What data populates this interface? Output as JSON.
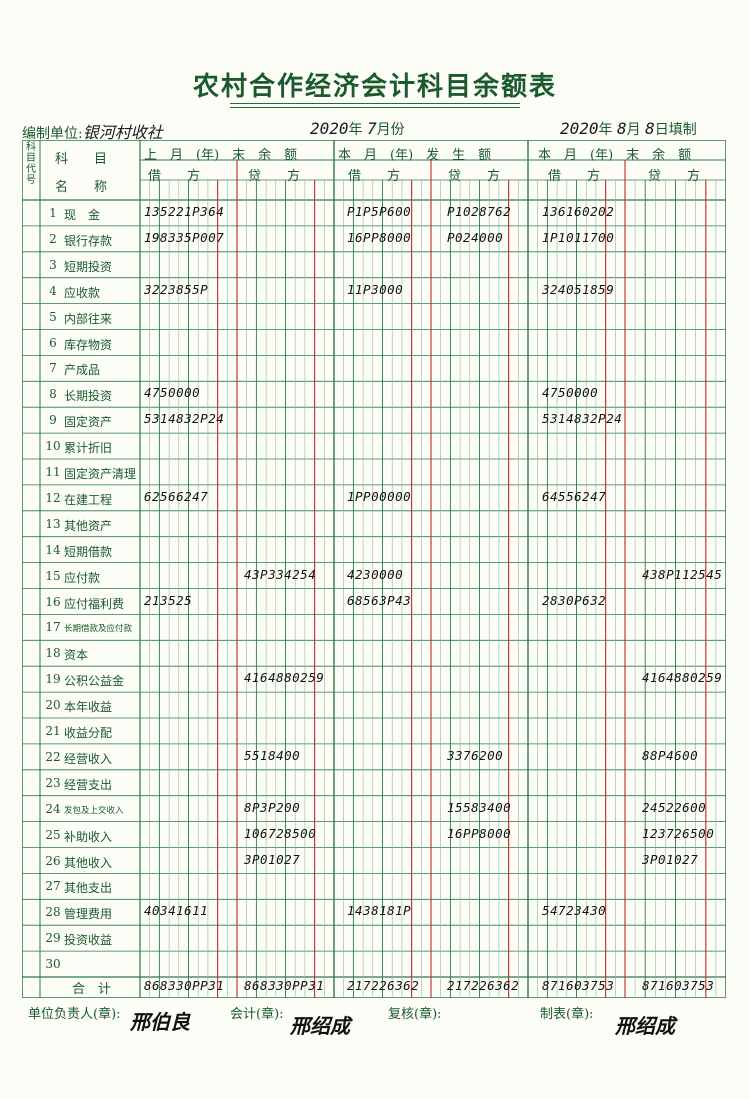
{
  "form": {
    "title": "农村合作经济会计科目余额表",
    "unit_label": "编制单位:",
    "unit_value": "银河村收社",
    "period_year": "2020",
    "period_year_suffix": "年",
    "period_month": "7",
    "period_month_suffix": "月份",
    "fill_year": "2020",
    "fill_year_suffix": "年",
    "fill_month": "8",
    "fill_month_suffix": "月",
    "fill_day": "8",
    "fill_day_suffix": "日填制"
  },
  "headers": {
    "code": "科目代号",
    "subject_top": "科　　目",
    "subject_bottom": "名　　称",
    "group_prev": "上　月　(年)　末　余　额",
    "group_curr": "本　月　(年)　发　生　额",
    "group_end": "本　月　(年)　末　余　额",
    "debit": "借　　方",
    "credit": "贷　　方",
    "total": "合　计"
  },
  "rows": [
    {
      "no": "1",
      "name": "现　金",
      "prev_debit": "135221P364",
      "prev_credit": "",
      "curr_debit": "P1P5P600",
      "curr_credit": "P1028762",
      "end_debit": "136160202",
      "end_credit": ""
    },
    {
      "no": "2",
      "name": "银行存款",
      "prev_debit": "198335P007",
      "prev_credit": "",
      "curr_debit": "16PP8000",
      "curr_credit": "P024000",
      "end_debit": "1P1011700",
      "end_credit": ""
    },
    {
      "no": "3",
      "name": "短期投资",
      "prev_debit": "",
      "prev_credit": "",
      "curr_debit": "",
      "curr_credit": "",
      "end_debit": "",
      "end_credit": ""
    },
    {
      "no": "4",
      "name": "应收款",
      "prev_debit": "3223855P",
      "prev_credit": "",
      "curr_debit": "11P3000",
      "curr_credit": "",
      "end_debit": "324051859",
      "end_credit": ""
    },
    {
      "no": "5",
      "name": "内部往来",
      "prev_debit": "",
      "prev_credit": "",
      "curr_debit": "",
      "curr_credit": "",
      "end_debit": "",
      "end_credit": ""
    },
    {
      "no": "6",
      "name": "库存物资",
      "prev_debit": "",
      "prev_credit": "",
      "curr_debit": "",
      "curr_credit": "",
      "end_debit": "",
      "end_credit": ""
    },
    {
      "no": "7",
      "name": "产成品",
      "prev_debit": "",
      "prev_credit": "",
      "curr_debit": "",
      "curr_credit": "",
      "end_debit": "",
      "end_credit": ""
    },
    {
      "no": "8",
      "name": "长期投资",
      "prev_debit": "4750000",
      "prev_credit": "",
      "curr_debit": "",
      "curr_credit": "",
      "end_debit": "4750000",
      "end_credit": ""
    },
    {
      "no": "9",
      "name": "固定资产",
      "prev_debit": "5314832P24",
      "prev_credit": "",
      "curr_debit": "",
      "curr_credit": "",
      "end_debit": "5314832P24",
      "end_credit": ""
    },
    {
      "no": "10",
      "name": "累计折旧",
      "prev_debit": "",
      "prev_credit": "",
      "curr_debit": "",
      "curr_credit": "",
      "end_debit": "",
      "end_credit": ""
    },
    {
      "no": "11",
      "name": "固定资产清理",
      "prev_debit": "",
      "prev_credit": "",
      "curr_debit": "",
      "curr_credit": "",
      "end_debit": "",
      "end_credit": ""
    },
    {
      "no": "12",
      "name": "在建工程",
      "prev_debit": "62566247",
      "prev_credit": "",
      "curr_debit": "1PP00000",
      "curr_credit": "",
      "end_debit": "64556247",
      "end_credit": ""
    },
    {
      "no": "13",
      "name": "其他资产",
      "prev_debit": "",
      "prev_credit": "",
      "curr_debit": "",
      "curr_credit": "",
      "end_debit": "",
      "end_credit": ""
    },
    {
      "no": "14",
      "name": "短期借款",
      "prev_debit": "",
      "prev_credit": "",
      "curr_debit": "",
      "curr_credit": "",
      "end_debit": "",
      "end_credit": ""
    },
    {
      "no": "15",
      "name": "应付款",
      "prev_debit": "",
      "prev_credit": "43P334254",
      "curr_debit": "4230000",
      "curr_credit": "",
      "end_debit": "",
      "end_credit": "438P112545"
    },
    {
      "no": "16",
      "name": "应付福利费",
      "prev_debit": "213525",
      "prev_credit": "",
      "curr_debit": "68563P43",
      "curr_credit": "",
      "end_debit": "2830P632",
      "end_credit": ""
    },
    {
      "no": "17",
      "name": "长期借款及应付款",
      "prev_debit": "",
      "prev_credit": "",
      "curr_debit": "",
      "curr_credit": "",
      "end_debit": "",
      "end_credit": ""
    },
    {
      "no": "18",
      "name": "资本",
      "prev_debit": "",
      "prev_credit": "",
      "curr_debit": "",
      "curr_credit": "",
      "end_debit": "",
      "end_credit": ""
    },
    {
      "no": "19",
      "name": "公积公益金",
      "prev_debit": "",
      "prev_credit": "4164880259",
      "curr_debit": "",
      "curr_credit": "",
      "end_debit": "",
      "end_credit": "4164880259"
    },
    {
      "no": "20",
      "name": "本年收益",
      "prev_debit": "",
      "prev_credit": "",
      "curr_debit": "",
      "curr_credit": "",
      "end_debit": "",
      "end_credit": ""
    },
    {
      "no": "21",
      "name": "收益分配",
      "prev_debit": "",
      "prev_credit": "",
      "curr_debit": "",
      "curr_credit": "",
      "end_debit": "",
      "end_credit": ""
    },
    {
      "no": "22",
      "name": "经营收入",
      "prev_debit": "",
      "prev_credit": "5518400",
      "curr_debit": "",
      "curr_credit": "3376200",
      "end_debit": "",
      "end_credit": "88P4600"
    },
    {
      "no": "23",
      "name": "经营支出",
      "prev_debit": "",
      "prev_credit": "",
      "curr_debit": "",
      "curr_credit": "",
      "end_debit": "",
      "end_credit": ""
    },
    {
      "no": "24",
      "name": "发包及上交收入",
      "prev_debit": "",
      "prev_credit": "8P3P200",
      "curr_debit": "",
      "curr_credit": "15583400",
      "end_debit": "",
      "end_credit": "24522600"
    },
    {
      "no": "25",
      "name": "补助收入",
      "prev_debit": "",
      "prev_credit": "106728500",
      "curr_debit": "",
      "curr_credit": "16PP8000",
      "end_debit": "",
      "end_credit": "123726500"
    },
    {
      "no": "26",
      "name": "其他收入",
      "prev_debit": "",
      "prev_credit": "3P01027",
      "curr_debit": "",
      "curr_credit": "",
      "end_debit": "",
      "end_credit": "3P01027"
    },
    {
      "no": "27",
      "name": "其他支出",
      "prev_debit": "",
      "prev_credit": "",
      "curr_debit": "",
      "curr_credit": "",
      "end_debit": "",
      "end_credit": ""
    },
    {
      "no": "28",
      "name": "管理费用",
      "prev_debit": "40341611",
      "prev_credit": "",
      "curr_debit": "1438181P",
      "curr_credit": "",
      "end_debit": "54723430",
      "end_credit": ""
    },
    {
      "no": "29",
      "name": "投资收益",
      "prev_debit": "",
      "prev_credit": "",
      "curr_debit": "",
      "curr_credit": "",
      "end_debit": "",
      "end_credit": ""
    },
    {
      "no": "30",
      "name": "",
      "prev_debit": "",
      "prev_credit": "",
      "curr_debit": "",
      "curr_credit": "",
      "end_debit": "",
      "end_credit": ""
    }
  ],
  "totals": {
    "prev_debit": "868330PP31",
    "prev_credit": "868330PP31",
    "curr_debit": "217226362",
    "curr_credit": "217226362",
    "end_debit": "871603753",
    "end_credit": "871603753"
  },
  "footer": {
    "leader_label": "单位负责人(章):",
    "leader_sig": "邢伯良",
    "accountant_label": "会计(章):",
    "accountant_sig": "邢绍成",
    "reviewer_label": "复核(章):",
    "preparer_label": "制表(章):",
    "preparer_sig": "邢绍成"
  }
}
